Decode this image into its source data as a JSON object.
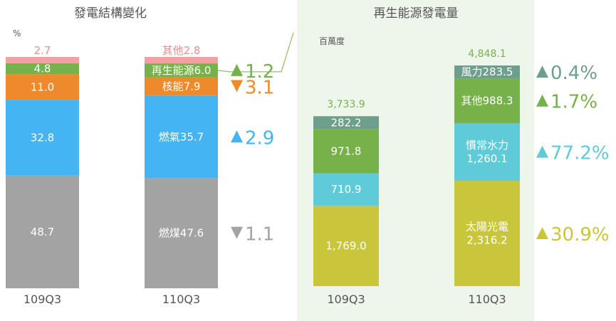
{
  "chart_data": [
    {
      "type": "bar",
      "stacked": true,
      "title": "發電結構變化",
      "unit": "%",
      "categories": [
        "109Q3",
        "110Q3"
      ],
      "series": [
        {
          "name": "燃煤",
          "values": [
            48.7,
            47.6
          ],
          "labels": [
            "48.7",
            "燃煤47.6"
          ],
          "color": "#A3A3A3"
        },
        {
          "name": "燃氣",
          "values": [
            32.8,
            35.7
          ],
          "labels": [
            "32.8",
            "燃氣35.7"
          ],
          "color": "#45B4F2"
        },
        {
          "name": "核能",
          "values": [
            11.0,
            7.9
          ],
          "labels": [
            "11.0",
            "核能7.9"
          ],
          "color": "#EE8A2B"
        },
        {
          "name": "再生能源",
          "values": [
            4.8,
            6.0
          ],
          "labels": [
            "4.8",
            "再生能源6.0"
          ],
          "color": "#76B14A"
        },
        {
          "name": "其他",
          "values": [
            2.7,
            2.8
          ],
          "labels": [
            "2.7",
            "其他2.8"
          ],
          "color": "#F2A0A2"
        }
      ],
      "changes": [
        {
          "series": "再生能源",
          "direction": "up",
          "text": "1.2",
          "color": "#76B14A"
        },
        {
          "series": "核能",
          "direction": "down",
          "text": "3.1",
          "color": "#EE8A2B"
        },
        {
          "series": "燃氣",
          "direction": "up",
          "text": "2.9",
          "color": "#45B4F2"
        },
        {
          "series": "燃煤",
          "direction": "down",
          "text": "1.1",
          "color": "#A3A3A3"
        }
      ]
    },
    {
      "type": "bar",
      "stacked": true,
      "title": "再生能源發電量",
      "unit": "百萬度",
      "categories": [
        "109Q3",
        "110Q3"
      ],
      "totals": [
        "3,733.9",
        "4,848.1"
      ],
      "series": [
        {
          "name": "太陽光電",
          "values": [
            1769.0,
            2316.2
          ],
          "labels": [
            "1,769.0",
            "太陽光電\n2,316.2"
          ],
          "color": "#C9C63B"
        },
        {
          "name": "慣常水力",
          "values": [
            710.9,
            1260.1
          ],
          "labels": [
            "710.9",
            "慣常水力\n1,260.1"
          ],
          "color": "#5FCAD8"
        },
        {
          "name": "其他",
          "values": [
            971.8,
            988.3
          ],
          "labels": [
            "971.8",
            "其他988.3"
          ],
          "color": "#76B14A"
        },
        {
          "name": "風力",
          "values": [
            282.2,
            283.5
          ],
          "labels": [
            "282.2",
            "風力283.5"
          ],
          "color": "#6E9E8C"
        }
      ],
      "changes": [
        {
          "series": "風力",
          "direction": "up",
          "text": " 0.4%",
          "color": "#6E9E8C"
        },
        {
          "series": "其他",
          "direction": "up",
          "text": " 1.7%",
          "color": "#76B14A"
        },
        {
          "series": "慣常水力",
          "direction": "up",
          "text": "77.2%",
          "color": "#5FCAD8"
        },
        {
          "series": "太陽光電",
          "direction": "up",
          "text": "30.9%",
          "color": "#C9C63B"
        }
      ]
    }
  ],
  "colors": {
    "panel_bg": "#EEF5EA",
    "total_text": "#76B14A",
    "other_pct_text": "#F08C8C",
    "connector": "#76B14A"
  }
}
